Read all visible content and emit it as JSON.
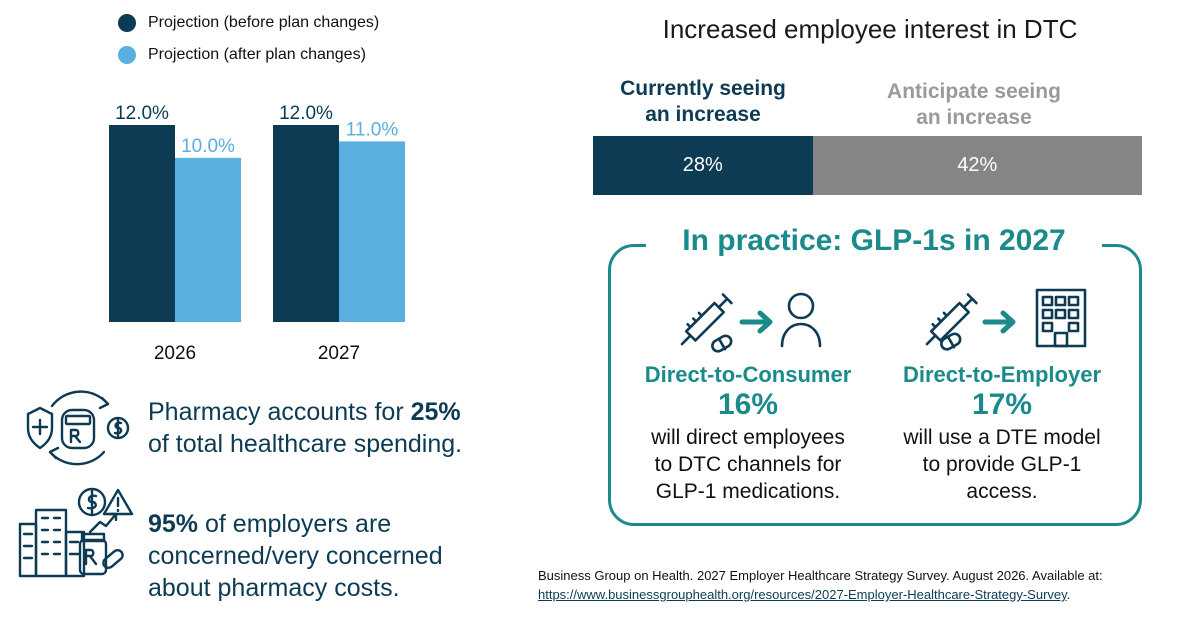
{
  "colors": {
    "navy": "#0d3b53",
    "light_blue": "#5aaee0",
    "gray": "#858585",
    "teal": "#1a8a8a"
  },
  "legend": {
    "before": "Projection (before plan changes)",
    "after": "Projection (after plan changes)"
  },
  "chart_data": [
    {
      "type": "bar",
      "categories": [
        "2026",
        "2027"
      ],
      "series": [
        {
          "name": "Projection (before plan changes)",
          "values": [
            12.0,
            12.0
          ],
          "labels": [
            "12.0%",
            "12.0%"
          ],
          "color": "#0d3b53"
        },
        {
          "name": "Projection (after plan changes)",
          "values": [
            10.0,
            11.0
          ],
          "labels": [
            "10.0%",
            "11.0%"
          ],
          "color": "#5aaee0"
        }
      ],
      "ylim": [
        0,
        12
      ]
    },
    {
      "type": "bar",
      "stacked": true,
      "orientation": "horizontal",
      "title": "Increased employee interest in DTC",
      "series": [
        {
          "name": "Currently seeing an increase",
          "value": 28,
          "label": "28%",
          "color": "#0d3b53"
        },
        {
          "name": "Anticipate seeing an increase",
          "value": 42,
          "label": "42%",
          "color": "#858585"
        }
      ]
    }
  ],
  "stats": {
    "pharmacy_pre": "Pharmacy accounts for ",
    "pharmacy_bold": "25%",
    "pharmacy_post": "of total healthcare spending.",
    "concern_bold": "95%",
    "concern_post": " of employers are",
    "concern_line2": "concerned/very concerned",
    "concern_line3": "about pharmacy costs."
  },
  "dtc": {
    "title": "Increased employee interest in DTC",
    "current_line1": "Currently seeing",
    "current_line2": "an increase",
    "anticipate_line1": "Anticipate seeing",
    "anticipate_line2": "an increase"
  },
  "practice": {
    "title": "In practice: GLP-1s in 2027",
    "dtc_title": "Direct-to-Consumer",
    "dtc_pct": "16%",
    "dtc_desc1": "will direct employees",
    "dtc_desc2": "to DTC channels for",
    "dtc_desc3": "GLP-1 medications.",
    "dte_title": "Direct-to-Employer",
    "dte_pct": "17%",
    "dte_desc1": "will use a DTE model",
    "dte_desc2": "to provide GLP-1",
    "dte_desc3": "access."
  },
  "citation": {
    "text": "Business Group on Health. 2027 Employer Healthcare Strategy Survey. August 2026. Available at:",
    "link": "https://www.businessgrouphealth.org/resources/2027-Employer-Healthcare-Strategy-Survey",
    "period": "."
  }
}
